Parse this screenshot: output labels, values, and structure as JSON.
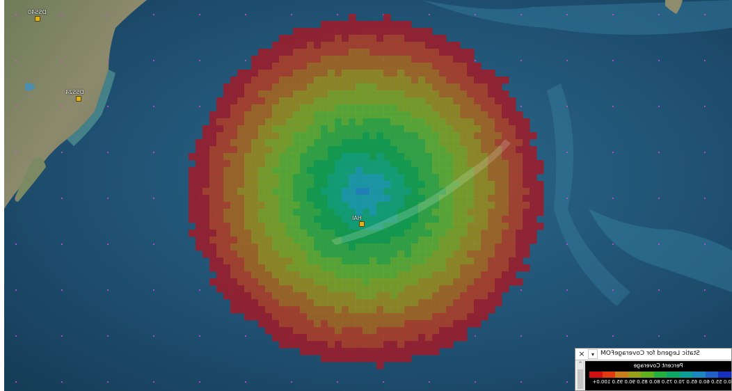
{
  "map": {
    "facilities": [
      {
        "id": "fac-top-left",
        "label": "DSS40"
      },
      {
        "id": "fac-left",
        "label": "DSS24"
      },
      {
        "id": "fac-center",
        "label": "HAI"
      }
    ]
  },
  "coverage": {
    "palette": [
      "#9e1c2a",
      "#b03e26",
      "#a6651e",
      "#9a8b1c",
      "#80a220",
      "#5fae2c",
      "#33a83c",
      "#129f48",
      "#12a272",
      "#1a9ca8",
      "#1f86bf"
    ]
  },
  "legend": {
    "title": "Static Legend for CoverageFOM",
    "heading": "Percent Coverage",
    "close_icon": "×",
    "menu_icon": "▾",
    "scroll_up_icon": "^",
    "values": [
      "0.0",
      "55.0",
      "60.0",
      "65.0",
      "70.0",
      "75.0",
      "80.0",
      "85.0",
      "90.0",
      "95.0",
      "100.0+"
    ],
    "colors": [
      "#d01010",
      "#e03a10",
      "#c9801a",
      "#9aa018",
      "#60b020",
      "#24b040",
      "#0ea664",
      "#0c9e96",
      "#1c86c0",
      "#2060c8",
      "#1830c0"
    ]
  }
}
